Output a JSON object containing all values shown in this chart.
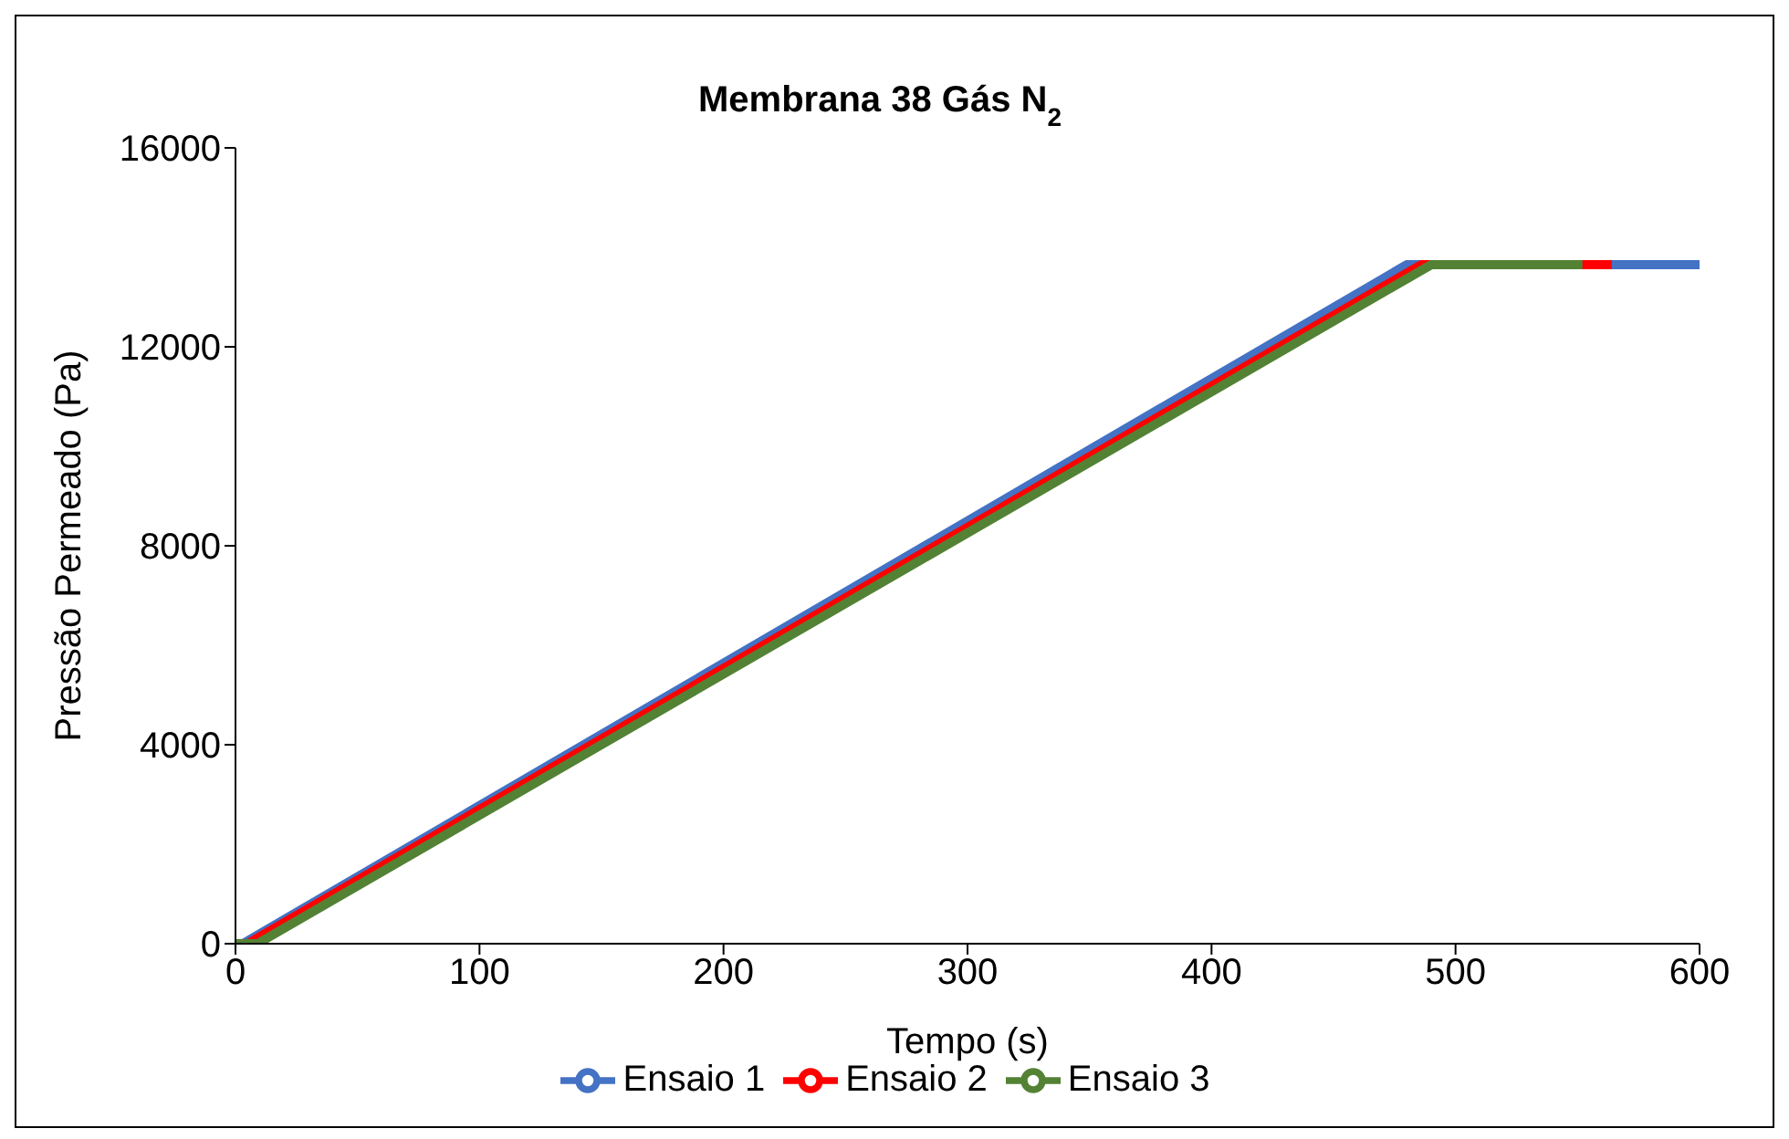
{
  "chart_data": {
    "type": "line",
    "title": "Membrana 38 Gás N$_{2}$",
    "xlabel": "Tempo (s)",
    "ylabel": "Pressão Permeado (Pa)",
    "xlim": [
      0,
      600
    ],
    "xticks": [
      0,
      100,
      200,
      300,
      400,
      500,
      600
    ],
    "ylim": [
      0,
      16000
    ],
    "yticks": [
      0,
      4000,
      8000,
      12000,
      16000
    ],
    "grid": false,
    "legend": "bottom",
    "marker": "none",
    "line_style": "solid",
    "series": [
      {
        "name": "Ensaio 1",
        "color": "#4472c4",
        "x": [
          0,
          3,
          480,
          600
        ],
        "values": [
          0,
          0,
          13650,
          13650
        ]
      },
      {
        "name": "Ensaio 2",
        "color": "#ff0000",
        "x": [
          0,
          5,
          486,
          564
        ],
        "values": [
          0,
          0,
          13650,
          13650
        ]
      },
      {
        "name": "Ensaio 3",
        "color": "#548235",
        "x": [
          0,
          9,
          490,
          552
        ],
        "values": [
          0,
          0,
          13650,
          13650
        ]
      }
    ]
  }
}
